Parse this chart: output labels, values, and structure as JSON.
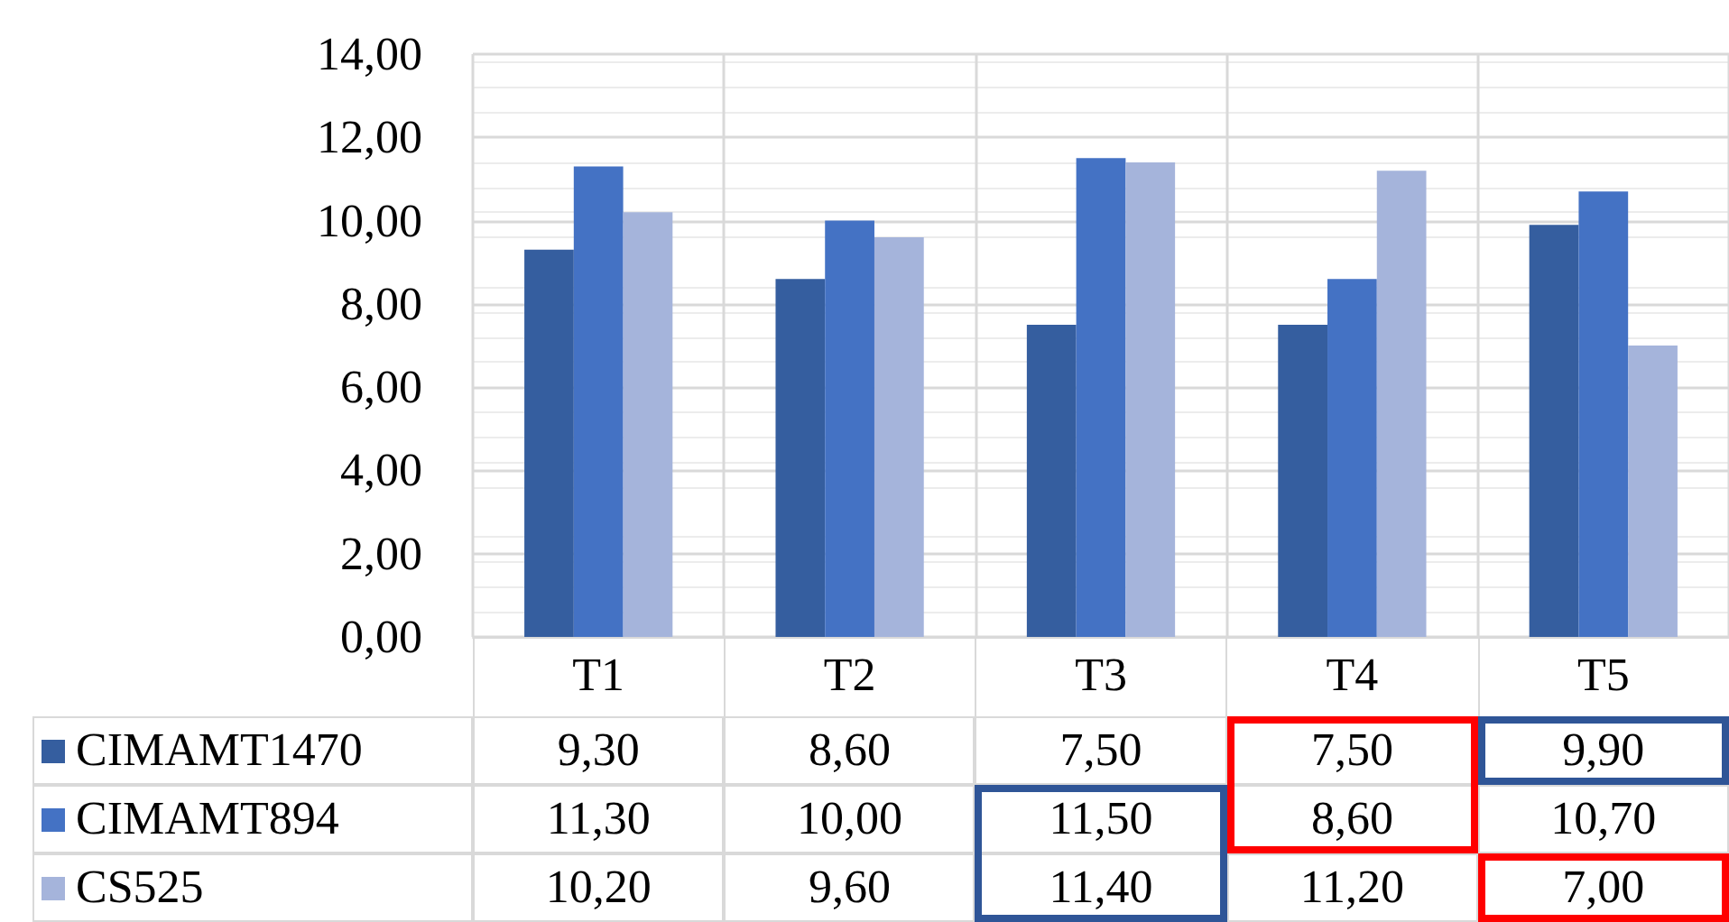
{
  "chart_data": {
    "type": "bar",
    "categories": [
      "T1",
      "T2",
      "T3",
      "T4",
      "T5"
    ],
    "series": [
      {
        "name": "CIMAMT1470",
        "color": "#355e9f",
        "values": [
          9.3,
          8.6,
          7.5,
          7.5,
          9.9
        ],
        "value_labels": [
          "9,30",
          "8,60",
          "7,50",
          "7,50",
          "9,90"
        ]
      },
      {
        "name": "CIMAMT894",
        "color": "#4472c4",
        "values": [
          11.3,
          10.0,
          11.5,
          8.6,
          10.7
        ],
        "value_labels": [
          "11,30",
          "10,00",
          "11,50",
          "8,60",
          "10,70"
        ]
      },
      {
        "name": "CS525",
        "color": "#a5b4db",
        "values": [
          10.2,
          9.6,
          11.4,
          11.2,
          7.0
        ],
        "value_labels": [
          "10,20",
          "9,60",
          "11,40",
          "11,20",
          "7,00"
        ]
      }
    ],
    "ylim": [
      0,
      14
    ],
    "yticks": [
      {
        "value": 0,
        "label": "0,00"
      },
      {
        "value": 2,
        "label": "2,00"
      },
      {
        "value": 4,
        "label": "4,00"
      },
      {
        "value": 6,
        "label": "6,00"
      },
      {
        "value": 8,
        "label": "8,00"
      },
      {
        "value": 10,
        "label": "10,00"
      },
      {
        "value": 12,
        "label": "12,00"
      },
      {
        "value": 14,
        "label": "14,00"
      }
    ],
    "grid": true,
    "legend": "bottom"
  }
}
